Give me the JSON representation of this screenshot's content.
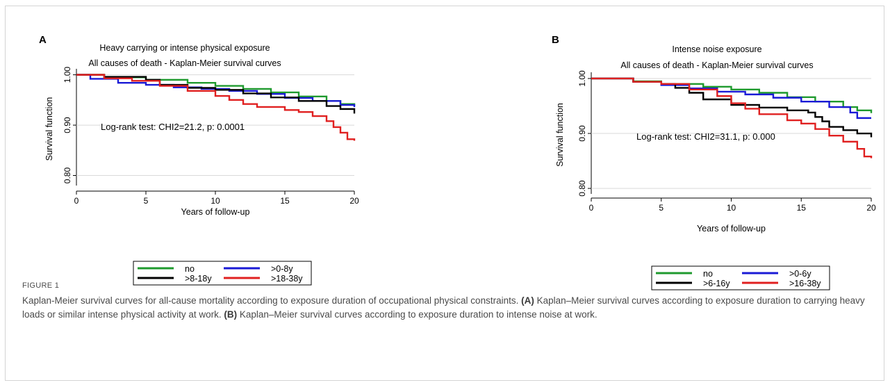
{
  "figure": {
    "label": "FIGURE 1",
    "caption": {
      "intro": "Kaplan-Meier survival curves for all-cause mortality according to exposure duration of occupational physical constraints.",
      "a_tag": "(A)",
      "a_text": "Kaplan–Meier survival curves according to exposure duration to carrying heavy loads or similar intense physical activity at work.",
      "b_tag": "(B)",
      "b_text": "Kaplan–Meier survival curves according to exposure duration to intense noise at work."
    }
  },
  "chart_data": [
    {
      "type": "line",
      "panel_label": "A",
      "title": "Heavy carrying or intense physical exposure",
      "subtitle": "All causes of death - Kaplan-Meier survival curves",
      "xlabel": "Years of follow-up",
      "ylabel": "Survival function",
      "xlim": [
        0,
        20
      ],
      "ylim": [
        0.78,
        1.005
      ],
      "xticks": [
        "0",
        "5",
        "10",
        "15",
        "20"
      ],
      "yticks": [
        "0.80",
        "0.90",
        "1.00"
      ],
      "grid": "horizontal",
      "annotation": "Log-rank test: CHI2=21.2, p: 0.0001",
      "legend_position": "bottom",
      "series": [
        {
          "name": "no",
          "color": "#1f9a2e",
          "x": [
            0,
            2,
            5,
            8,
            10,
            12,
            14,
            16,
            18,
            19,
            20
          ],
          "y": [
            1.0,
            0.995,
            0.99,
            0.984,
            0.978,
            0.972,
            0.965,
            0.957,
            0.948,
            0.942,
            0.938
          ]
        },
        {
          "name": ">0-8y",
          "color": "#1a1ad6",
          "x": [
            0,
            1,
            3,
            5,
            7,
            9,
            11,
            13,
            15,
            17,
            19,
            20
          ],
          "y": [
            1.0,
            0.992,
            0.984,
            0.98,
            0.975,
            0.972,
            0.968,
            0.962,
            0.954,
            0.948,
            0.94,
            0.936
          ]
        },
        {
          "name": ">8-18y",
          "color": "#000000",
          "x": [
            0,
            2,
            5,
            6,
            8,
            10,
            12,
            14,
            16,
            18,
            19,
            20
          ],
          "y": [
            1.0,
            0.996,
            0.99,
            0.98,
            0.974,
            0.97,
            0.963,
            0.955,
            0.948,
            0.938,
            0.932,
            0.923
          ]
        },
        {
          "name": ">18-38y",
          "color": "#e02020",
          "x": [
            0,
            2,
            4,
            6,
            8,
            10,
            11,
            12,
            13,
            15,
            16,
            17,
            18,
            18.5,
            19,
            19.5,
            20
          ],
          "y": [
            1.0,
            0.993,
            0.988,
            0.978,
            0.968,
            0.958,
            0.95,
            0.942,
            0.936,
            0.93,
            0.926,
            0.918,
            0.908,
            0.896,
            0.885,
            0.872,
            0.869
          ]
        }
      ]
    },
    {
      "type": "line",
      "panel_label": "B",
      "title": "Intense noise exposure",
      "subtitle": "All causes of death - Kaplan-Meier survival curves",
      "xlabel": "Years of follow-up",
      "ylabel": "Survival function",
      "xlim": [
        0,
        20
      ],
      "ylim": [
        0.79,
        1.005
      ],
      "xticks": [
        "0",
        "5",
        "10",
        "15",
        "20"
      ],
      "yticks": [
        "0.80",
        "0.90",
        "1.00"
      ],
      "grid": "horizontal",
      "annotation": "Log-rank test: CHI2=31.1, p: 0.000",
      "legend_position": "bottom",
      "series": [
        {
          "name": "no",
          "color": "#1f9a2e",
          "x": [
            0,
            3,
            5,
            8,
            10,
            12,
            14,
            16,
            18,
            19,
            20
          ],
          "y": [
            1.0,
            0.995,
            0.99,
            0.985,
            0.98,
            0.974,
            0.966,
            0.958,
            0.948,
            0.942,
            0.937
          ]
        },
        {
          "name": ">0-6y",
          "color": "#1a1ad6",
          "x": [
            0,
            3,
            5,
            7,
            9,
            11,
            13,
            15,
            17,
            18.5,
            19,
            20
          ],
          "y": [
            1.0,
            0.994,
            0.988,
            0.982,
            0.976,
            0.971,
            0.965,
            0.958,
            0.948,
            0.938,
            0.928,
            0.928
          ]
        },
        {
          "name": ">6-16y",
          "color": "#000000",
          "x": [
            0,
            3,
            5,
            6,
            7,
            8,
            10,
            12,
            14,
            15.5,
            16,
            16.5,
            17,
            18,
            19,
            20
          ],
          "y": [
            1.0,
            0.994,
            0.99,
            0.983,
            0.974,
            0.962,
            0.952,
            0.947,
            0.942,
            0.938,
            0.93,
            0.922,
            0.912,
            0.906,
            0.9,
            0.893
          ]
        },
        {
          "name": ">16-38y",
          "color": "#e02020",
          "x": [
            0,
            3,
            5,
            7,
            9,
            10,
            11,
            12,
            14,
            15,
            16,
            17,
            18,
            19,
            19.5,
            20
          ],
          "y": [
            1.0,
            0.994,
            0.99,
            0.98,
            0.968,
            0.955,
            0.945,
            0.935,
            0.924,
            0.918,
            0.908,
            0.896,
            0.885,
            0.872,
            0.858,
            0.855
          ]
        }
      ]
    }
  ]
}
